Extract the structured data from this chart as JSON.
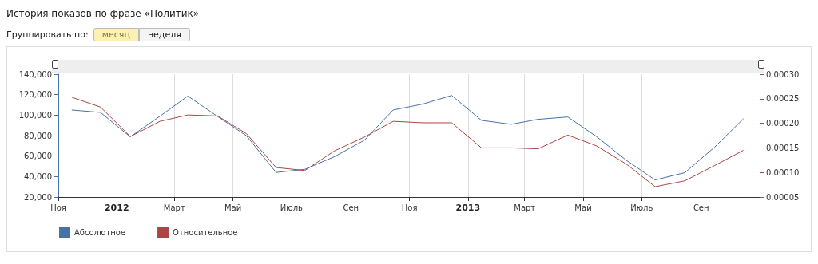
{
  "chart_data": {
    "type": "line",
    "title": "История показов по фразе «Политик»",
    "annotations": [
      "Группировать по:",
      "месяц",
      "неделя"
    ],
    "x": [
      "2011-11-15",
      "2011-12-15",
      "2012-01-15",
      "2012-02-15",
      "2012-03-15",
      "2012-04-15",
      "2012-05-15",
      "2012-06-15",
      "2012-07-15",
      "2012-08-15",
      "2012-09-15",
      "2012-10-15",
      "2012-11-15",
      "2012-12-15",
      "2013-01-15",
      "2013-02-15",
      "2013-03-15",
      "2013-04-15",
      "2013-05-15",
      "2013-06-15",
      "2013-07-15",
      "2013-08-15",
      "2013-09-15",
      "2013-10-15"
    ],
    "series": [
      {
        "name": "Абсолютное",
        "color": "#4572a7",
        "values": [
          105000,
          102600,
          78800,
          99000,
          118600,
          98700,
          79900,
          44000,
          47100,
          59500,
          75500,
          105000,
          110800,
          119200,
          94900,
          91000,
          95900,
          98200,
          79000,
          55900,
          36700,
          43800,
          68700,
          96400
        ]
      },
      {
        "name": "Относительное",
        "color": "#aa4643",
        "axis": "y2",
        "values": [
          0.000253,
          0.000233,
          0.000173,
          0.000204,
          0.000217,
          0.000215,
          0.000179,
          0.00011,
          0.000104,
          0.000144,
          0.000172,
          0.000204,
          0.000201,
          0.000201,
          0.00015,
          0.00015,
          0.000148,
          0.000176,
          0.000154,
          0.000117,
          7.1e-05,
          8.3e-05,
          0.000114,
          0.000145
        ]
      }
    ],
    "xlim": [
      "2011-11-01",
      "2013-11-01"
    ],
    "xticks": [
      {
        "value": "2011-11-01",
        "label": "Ноя"
      },
      {
        "value": "2012-01-01",
        "label": "2012"
      },
      {
        "value": "2012-03-01",
        "label": "Март"
      },
      {
        "value": "2012-05-01",
        "label": "Май"
      },
      {
        "value": "2012-07-01",
        "label": "Июль"
      },
      {
        "value": "2012-09-01",
        "label": "Сен"
      },
      {
        "value": "2012-11-01",
        "label": "Ноя"
      },
      {
        "value": "2013-01-01",
        "label": "2013"
      },
      {
        "value": "2013-03-01",
        "label": "Март"
      },
      {
        "value": "2013-05-01",
        "label": "Май"
      },
      {
        "value": "2013-07-01",
        "label": "Июль"
      },
      {
        "value": "2013-09-01",
        "label": "Сен"
      }
    ],
    "ylim": [
      20000,
      140000
    ],
    "yticks": [
      {
        "value": 20000,
        "label": "20,000"
      },
      {
        "value": 40000,
        "label": "40,000"
      },
      {
        "value": 60000,
        "label": "60,000"
      },
      {
        "value": 80000,
        "label": "80,000"
      },
      {
        "value": 100000,
        "label": "100,000"
      },
      {
        "value": 120000,
        "label": "120,000"
      },
      {
        "value": 140000,
        "label": "140,000"
      }
    ],
    "y2lim": [
      5e-05,
      0.0003
    ],
    "y2ticks": [
      {
        "value": 5e-05,
        "label": "0.00005"
      },
      {
        "value": 0.0001,
        "label": "0.00010"
      },
      {
        "value": 0.00015,
        "label": "0.00015"
      },
      {
        "value": 0.0002,
        "label": "0.00020"
      },
      {
        "value": 0.00025,
        "label": "0.00025"
      },
      {
        "value": 0.0003,
        "label": "0.00030"
      }
    ],
    "grid": "x",
    "legend": "bottom left",
    "marker": "none"
  }
}
